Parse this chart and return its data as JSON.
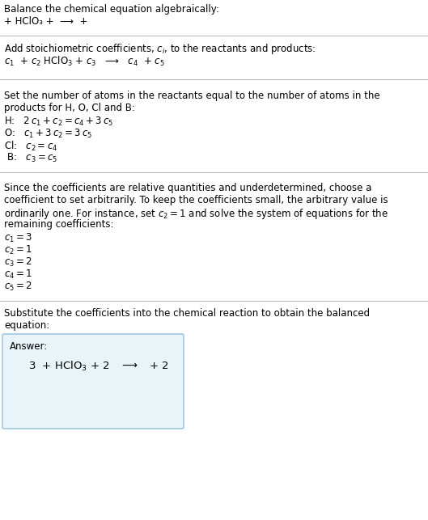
{
  "bg_color": "#ffffff",
  "text_color": "#000000",
  "answer_box_color": "#e8f4f8",
  "answer_box_border": "#a0c8e0",
  "separator_color": "#bbbbbb",
  "font_size": 8.5,
  "answer_font_size": 9.5,
  "sections": {
    "s1_title": "Balance the chemical equation algebraically:",
    "s1_eq": "+ HClO₃ +  ⟶  +",
    "s2_header": "Add stoichiometric coefficients, $c_i$, to the reactants and products:",
    "s2_eq": "$c_1$  + $c_2$ HClO$_3$ + $c_3$   ⟶   $c_4$  + $c_5$",
    "s3_line1": "Set the number of atoms in the reactants equal to the number of atoms in the",
    "s3_line2": "products for H, O, Cl and B:",
    "s3_eqs": [
      "H:   $2\\,c_1 + c_2 = c_4 + 3\\,c_5$",
      "O:   $c_1 + 3\\,c_2 = 3\\,c_5$",
      "Cl:   $c_2 = c_4$",
      " B:   $c_3 = c_5$"
    ],
    "s4_line1": "Since the coefficients are relative quantities and underdetermined, choose a",
    "s4_line2": "coefficient to set arbitrarily. To keep the coefficients small, the arbitrary value is",
    "s4_line3": "ordinarily one. For instance, set $c_2 = 1$ and solve the system of equations for the",
    "s4_line4": "remaining coefficients:",
    "s4_sols": [
      "$c_1 = 3$",
      "$c_2 = 1$",
      "$c_3 = 2$",
      "$c_4 = 1$",
      "$c_5 = 2$"
    ],
    "s5_line1": "Substitute the coefficients into the chemical reaction to obtain the balanced",
    "s5_line2": "equation:",
    "answer_label": "Answer:",
    "answer_eq": "3  + HClO$_3$ + 2   $\\longrightarrow$   + 2"
  }
}
